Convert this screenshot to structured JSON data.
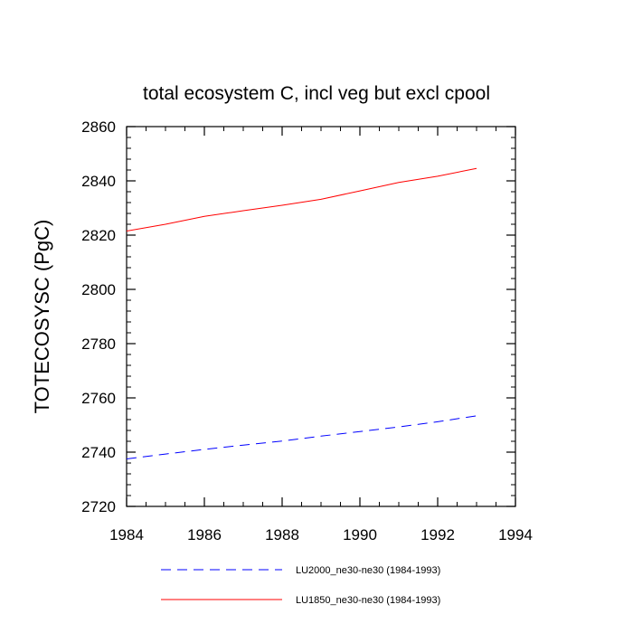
{
  "chart_data": {
    "type": "line",
    "title": "total ecosystem C, incl veg but excl cpool",
    "xlabel": "",
    "ylabel": "TOTECOSYSC  (PgC)",
    "xlim": [
      1984,
      1994
    ],
    "ylim": [
      2720,
      2860
    ],
    "xticks": [
      1984,
      1986,
      1988,
      1990,
      1992,
      1994
    ],
    "yticks": [
      2720,
      2740,
      2760,
      2780,
      2800,
      2820,
      2840,
      2860
    ],
    "x_minor_step": 0.5,
    "y_minor_step": 4,
    "grid": false,
    "legend_position": "bottom-center",
    "series": [
      {
        "name": "LU2000_ne30-ne30 (1984-1993)",
        "color": "#0000ff",
        "dash": "dashed",
        "x": [
          1984,
          1985,
          1986,
          1987,
          1988,
          1989,
          1990,
          1991,
          1992,
          1993
        ],
        "values": [
          2737.5,
          2739.3,
          2741.0,
          2742.6,
          2744.1,
          2745.9,
          2747.6,
          2749.3,
          2751.2,
          2753.4
        ]
      },
      {
        "name": "LU1850_ne30-ne30 (1984-1993)",
        "color": "#ff0000",
        "dash": "solid",
        "x": [
          1984,
          1985,
          1986,
          1987,
          1988,
          1989,
          1990,
          1991,
          1992,
          1993
        ],
        "values": [
          2821.5,
          2824.0,
          2826.9,
          2829.0,
          2831.0,
          2833.2,
          2836.3,
          2839.4,
          2841.7,
          2844.6
        ]
      }
    ]
  }
}
